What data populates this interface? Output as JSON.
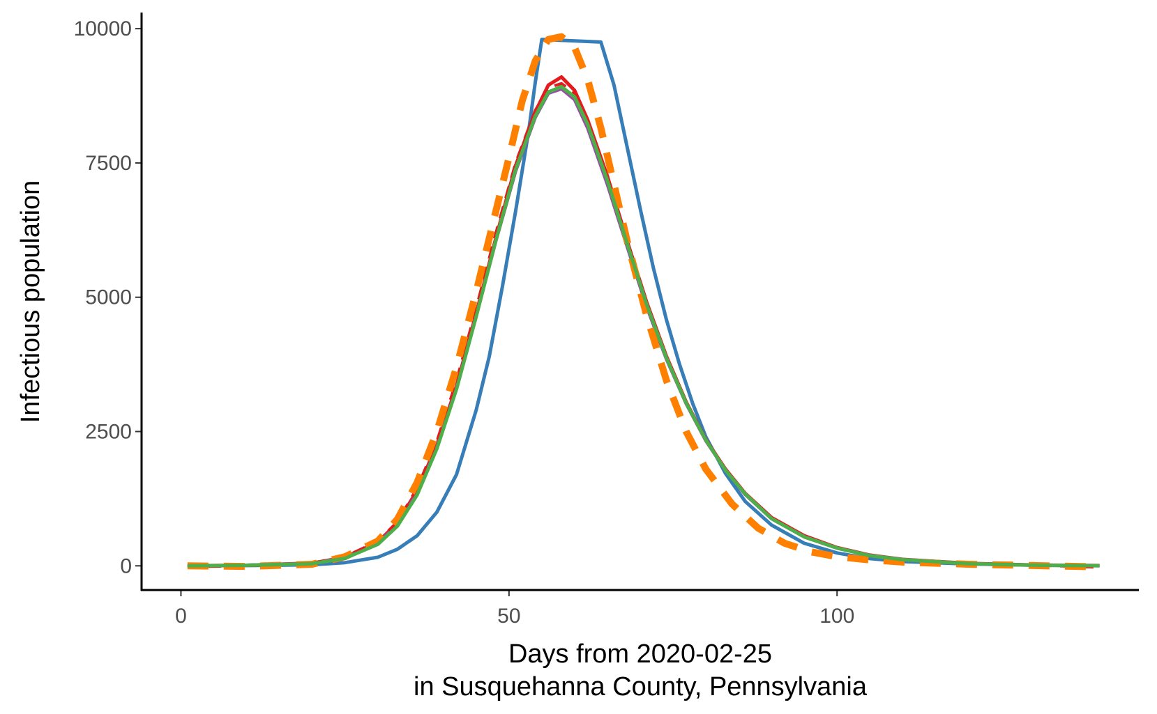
{
  "chart_data": {
    "type": "line",
    "title": "",
    "xlabel_lines": [
      "Days from 2020-02-25",
      "in Susquehanna County, Pennsylvania"
    ],
    "ylabel": "Infectious population",
    "xlim": [
      -6,
      146
    ],
    "ylim": [
      -450,
      10300
    ],
    "x_ticks": [
      0,
      50,
      100
    ],
    "x_tick_labels": [
      "0",
      "50",
      "100"
    ],
    "y_ticks": [
      0,
      2500,
      5000,
      7500,
      10000
    ],
    "y_tick_labels": [
      "0",
      "2500",
      "5000",
      "7500",
      "10000"
    ],
    "grid": false,
    "legend": "none",
    "series": [
      {
        "color": "#377eb8",
        "style": "solid",
        "points": [
          [
            1,
            0
          ],
          [
            10,
            5
          ],
          [
            20,
            20
          ],
          [
            25,
            60
          ],
          [
            30,
            160
          ],
          [
            33,
            310
          ],
          [
            36,
            560
          ],
          [
            39,
            1000
          ],
          [
            42,
            1700
          ],
          [
            45,
            2900
          ],
          [
            47,
            3900
          ],
          [
            49,
            5200
          ],
          [
            51,
            6600
          ],
          [
            53,
            8100
          ],
          [
            54,
            9000
          ],
          [
            55,
            9800
          ],
          [
            64,
            9750
          ],
          [
            66,
            8950
          ],
          [
            68,
            7800
          ],
          [
            70,
            6650
          ],
          [
            72,
            5550
          ],
          [
            74,
            4580
          ],
          [
            76,
            3750
          ],
          [
            78,
            3020
          ],
          [
            80,
            2400
          ],
          [
            83,
            1720
          ],
          [
            86,
            1200
          ],
          [
            90,
            760
          ],
          [
            95,
            420
          ],
          [
            100,
            240
          ],
          [
            105,
            135
          ],
          [
            110,
            80
          ],
          [
            120,
            35
          ],
          [
            130,
            12
          ],
          [
            140,
            3
          ]
        ]
      },
      {
        "color": "#e41a1c",
        "style": "solid",
        "points": [
          [
            1,
            0
          ],
          [
            10,
            10
          ],
          [
            20,
            50
          ],
          [
            25,
            160
          ],
          [
            30,
            440
          ],
          [
            33,
            800
          ],
          [
            36,
            1400
          ],
          [
            39,
            2250
          ],
          [
            42,
            3350
          ],
          [
            45,
            4700
          ],
          [
            48,
            6100
          ],
          [
            51,
            7450
          ],
          [
            54,
            8450
          ],
          [
            56,
            8950
          ],
          [
            58,
            9100
          ],
          [
            60,
            8850
          ],
          [
            62,
            8300
          ],
          [
            65,
            7250
          ],
          [
            68,
            6050
          ],
          [
            71,
            4900
          ],
          [
            74,
            3900
          ],
          [
            77,
            3050
          ],
          [
            80,
            2350
          ],
          [
            83,
            1800
          ],
          [
            86,
            1350
          ],
          [
            90,
            900
          ],
          [
            95,
            560
          ],
          [
            100,
            340
          ],
          [
            105,
            200
          ],
          [
            110,
            120
          ],
          [
            120,
            45
          ],
          [
            130,
            15
          ],
          [
            140,
            5
          ]
        ]
      },
      {
        "color": "#984ea3",
        "style": "solid",
        "points": [
          [
            1,
            0
          ],
          [
            10,
            10
          ],
          [
            20,
            45
          ],
          [
            25,
            150
          ],
          [
            30,
            420
          ],
          [
            33,
            770
          ],
          [
            36,
            1350
          ],
          [
            39,
            2200
          ],
          [
            42,
            3300
          ],
          [
            45,
            4650
          ],
          [
            48,
            6050
          ],
          [
            51,
            7350
          ],
          [
            54,
            8350
          ],
          [
            56,
            8800
          ],
          [
            58,
            8880
          ],
          [
            60,
            8680
          ],
          [
            62,
            8150
          ],
          [
            65,
            7100
          ],
          [
            68,
            5950
          ],
          [
            71,
            4820
          ],
          [
            74,
            3850
          ],
          [
            77,
            3020
          ],
          [
            80,
            2330
          ],
          [
            83,
            1780
          ],
          [
            86,
            1330
          ],
          [
            90,
            880
          ],
          [
            95,
            540
          ],
          [
            100,
            330
          ],
          [
            105,
            195
          ],
          [
            110,
            115
          ],
          [
            120,
            40
          ],
          [
            130,
            13
          ],
          [
            140,
            4
          ]
        ]
      },
      {
        "color": "#e41a1c",
        "style": "dashed",
        "points": [
          [
            1,
            -20
          ],
          [
            10,
            0
          ],
          [
            20,
            50
          ],
          [
            25,
            170
          ],
          [
            30,
            460
          ],
          [
            33,
            820
          ],
          [
            36,
            1450
          ],
          [
            39,
            2320
          ],
          [
            42,
            3450
          ],
          [
            45,
            4800
          ],
          [
            48,
            6200
          ],
          [
            51,
            7500
          ],
          [
            54,
            8480
          ],
          [
            56,
            8900
          ],
          [
            58,
            8980
          ],
          [
            60,
            8800
          ],
          [
            62,
            8280
          ],
          [
            65,
            7220
          ],
          [
            68,
            6020
          ],
          [
            71,
            4880
          ],
          [
            74,
            3880
          ],
          [
            77,
            3030
          ],
          [
            80,
            2330
          ],
          [
            83,
            1780
          ],
          [
            86,
            1330
          ],
          [
            90,
            880
          ],
          [
            95,
            540
          ],
          [
            100,
            330
          ],
          [
            105,
            195
          ],
          [
            110,
            115
          ],
          [
            120,
            40
          ],
          [
            130,
            13
          ],
          [
            140,
            -30
          ]
        ]
      },
      {
        "color": "#ff7f00",
        "style": "longdash",
        "points": [
          [
            1,
            0
          ],
          [
            10,
            -10
          ],
          [
            20,
            30
          ],
          [
            25,
            170
          ],
          [
            30,
            460
          ],
          [
            33,
            870
          ],
          [
            36,
            1550
          ],
          [
            39,
            2500
          ],
          [
            42,
            3700
          ],
          [
            45,
            5100
          ],
          [
            48,
            6600
          ],
          [
            50,
            7600
          ],
          [
            52,
            8650
          ],
          [
            54,
            9400
          ],
          [
            56,
            9800
          ],
          [
            58,
            9850
          ],
          [
            60,
            9650
          ],
          [
            62,
            9050
          ],
          [
            64,
            8150
          ],
          [
            66,
            7100
          ],
          [
            68,
            6050
          ],
          [
            71,
            4650
          ],
          [
            74,
            3450
          ],
          [
            77,
            2500
          ],
          [
            80,
            1800
          ],
          [
            84,
            1150
          ],
          [
            88,
            700
          ],
          [
            92,
            420
          ],
          [
            96,
            260
          ],
          [
            100,
            170
          ],
          [
            105,
            110
          ],
          [
            110,
            70
          ],
          [
            120,
            30
          ],
          [
            130,
            5
          ],
          [
            140,
            -20
          ]
        ]
      },
      {
        "color": "#4daf4a",
        "style": "solid",
        "points": [
          [
            1,
            0
          ],
          [
            10,
            10
          ],
          [
            20,
            40
          ],
          [
            25,
            140
          ],
          [
            30,
            400
          ],
          [
            33,
            740
          ],
          [
            36,
            1320
          ],
          [
            39,
            2180
          ],
          [
            42,
            3290
          ],
          [
            45,
            4640
          ],
          [
            48,
            6060
          ],
          [
            51,
            7380
          ],
          [
            54,
            8370
          ],
          [
            56,
            8820
          ],
          [
            58,
            8920
          ],
          [
            60,
            8730
          ],
          [
            62,
            8220
          ],
          [
            65,
            7170
          ],
          [
            68,
            6000
          ],
          [
            71,
            4860
          ],
          [
            74,
            3870
          ],
          [
            77,
            3030
          ],
          [
            80,
            2340
          ],
          [
            83,
            1780
          ],
          [
            86,
            1340
          ],
          [
            90,
            880
          ],
          [
            95,
            540
          ],
          [
            100,
            330
          ],
          [
            105,
            190
          ],
          [
            110,
            115
          ],
          [
            120,
            40
          ],
          [
            130,
            12
          ],
          [
            140,
            3
          ]
        ]
      }
    ]
  }
}
